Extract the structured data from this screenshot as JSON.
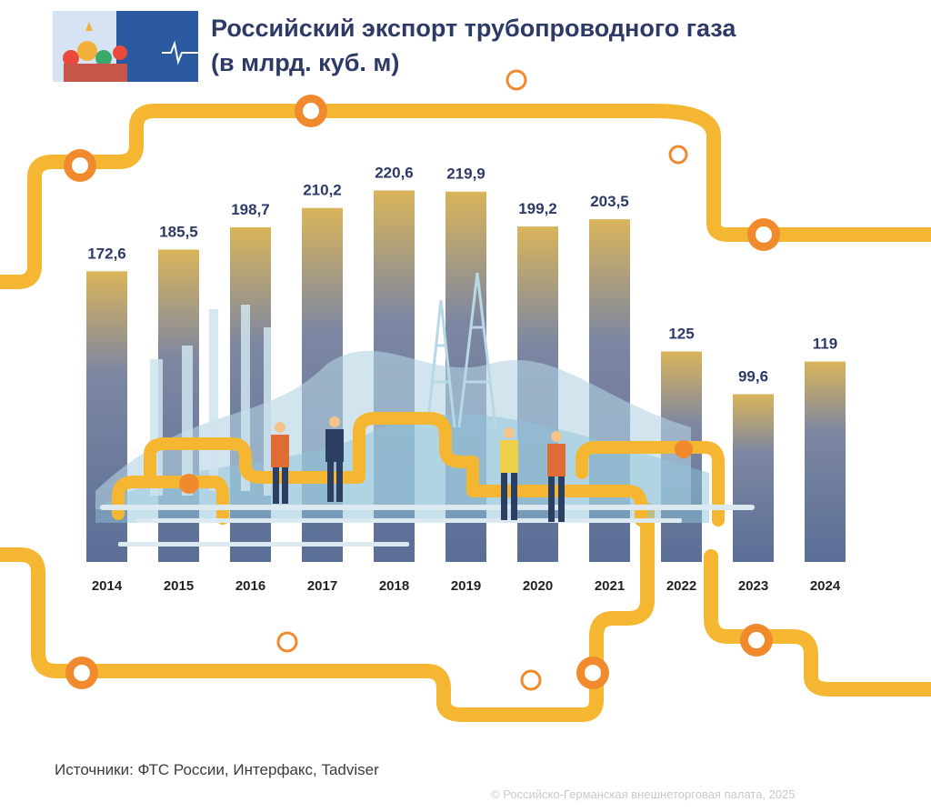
{
  "header": {
    "title_line1": "Российский экспорт трубопроводного газа",
    "title_line2": "(в млрд. куб. м)"
  },
  "chart_data": {
    "type": "bar",
    "title": "Российский экспорт трубопроводного газа (в млрд. куб. м)",
    "categories": [
      "2014",
      "2015",
      "2016",
      "2017",
      "2018",
      "2019",
      "2020",
      "2021",
      "2022",
      "2023",
      "2024"
    ],
    "values": [
      172.6,
      185.5,
      198.7,
      210.2,
      220.6,
      219.9,
      199.2,
      203.5,
      125,
      99.6,
      119
    ],
    "value_labels": [
      "172,6",
      "185,5",
      "198,7",
      "210,2",
      "220,6",
      "219,9",
      "199,2",
      "203,5",
      "125",
      "99,6",
      "119"
    ],
    "xlabel": "",
    "ylabel": "",
    "ylim": [
      0,
      250
    ],
    "grid": false,
    "colors": {
      "bar_top": "#d9b45a",
      "bar_bottom": "#5a6e96",
      "label": "#2e3a66",
      "pipe": "#f5b731",
      "valve": "#f08a2c"
    }
  },
  "footer": {
    "source": "Источники: ФТС России, Интерфакс, Tadviser",
    "copyright": "© Российско-Германская внешнеторговая палата, 2025"
  },
  "decor": {
    "logo_icon": "kremlin-cathedral-icon"
  }
}
